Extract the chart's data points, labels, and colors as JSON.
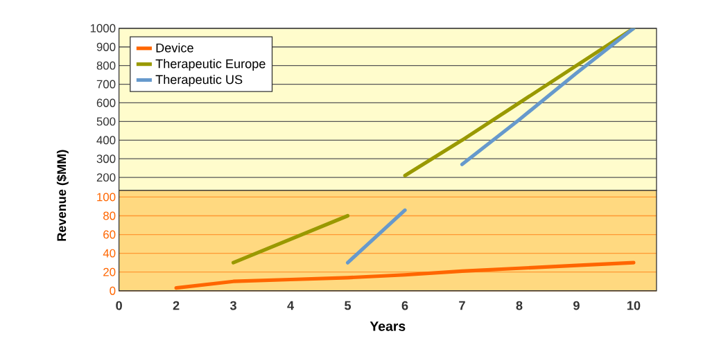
{
  "chart_data": [
    {
      "type": "line",
      "categories": [
        "0",
        "2",
        "3",
        "4",
        "5",
        "6",
        "7",
        "8",
        "9",
        "10"
      ],
      "ylim": [
        130,
        1000
      ],
      "yticks": [
        200,
        300,
        400,
        500,
        600,
        700,
        800,
        900,
        1000
      ],
      "grid": "y",
      "legend": "top left",
      "tick_labels": "y",
      "line_style": "solid",
      "marker": "none",
      "series": [
        {
          "name": "Device",
          "color": "#ff6600",
          "values": [
            null,
            null,
            null,
            null,
            null,
            null,
            null,
            null,
            null,
            null
          ]
        },
        {
          "name": "Therapeutic Europe",
          "color": "#999900",
          "values": [
            null,
            null,
            null,
            null,
            null,
            210,
            400,
            600,
            800,
            1000
          ]
        },
        {
          "name": "Therapeutic US",
          "color": "#6699cc",
          "values": [
            null,
            null,
            null,
            null,
            null,
            null,
            270,
            510,
            760,
            1000
          ]
        }
      ]
    },
    {
      "type": "line",
      "xlabel": "Years",
      "ylabel": "Revenue ($MM)",
      "categories": [
        "0",
        "2",
        "3",
        "4",
        "5",
        "6",
        "7",
        "8",
        "9",
        "10"
      ],
      "ylim": [
        0,
        107
      ],
      "yticks": [
        0,
        20,
        40,
        60,
        80,
        100
      ],
      "grid": "y",
      "line_style": "solid",
      "marker": "none",
      "series": [
        {
          "color": "#ff6600",
          "values": [
            null,
            3,
            10,
            12,
            14,
            17,
            21,
            24,
            27,
            30
          ]
        },
        {
          "color": "#999900",
          "values": [
            null,
            null,
            30,
            55,
            80,
            null,
            null,
            null,
            null,
            null
          ]
        },
        {
          "color": "#6699cc",
          "values": [
            null,
            null,
            null,
            null,
            30,
            86,
            null,
            null,
            null,
            null
          ]
        }
      ]
    }
  ]
}
